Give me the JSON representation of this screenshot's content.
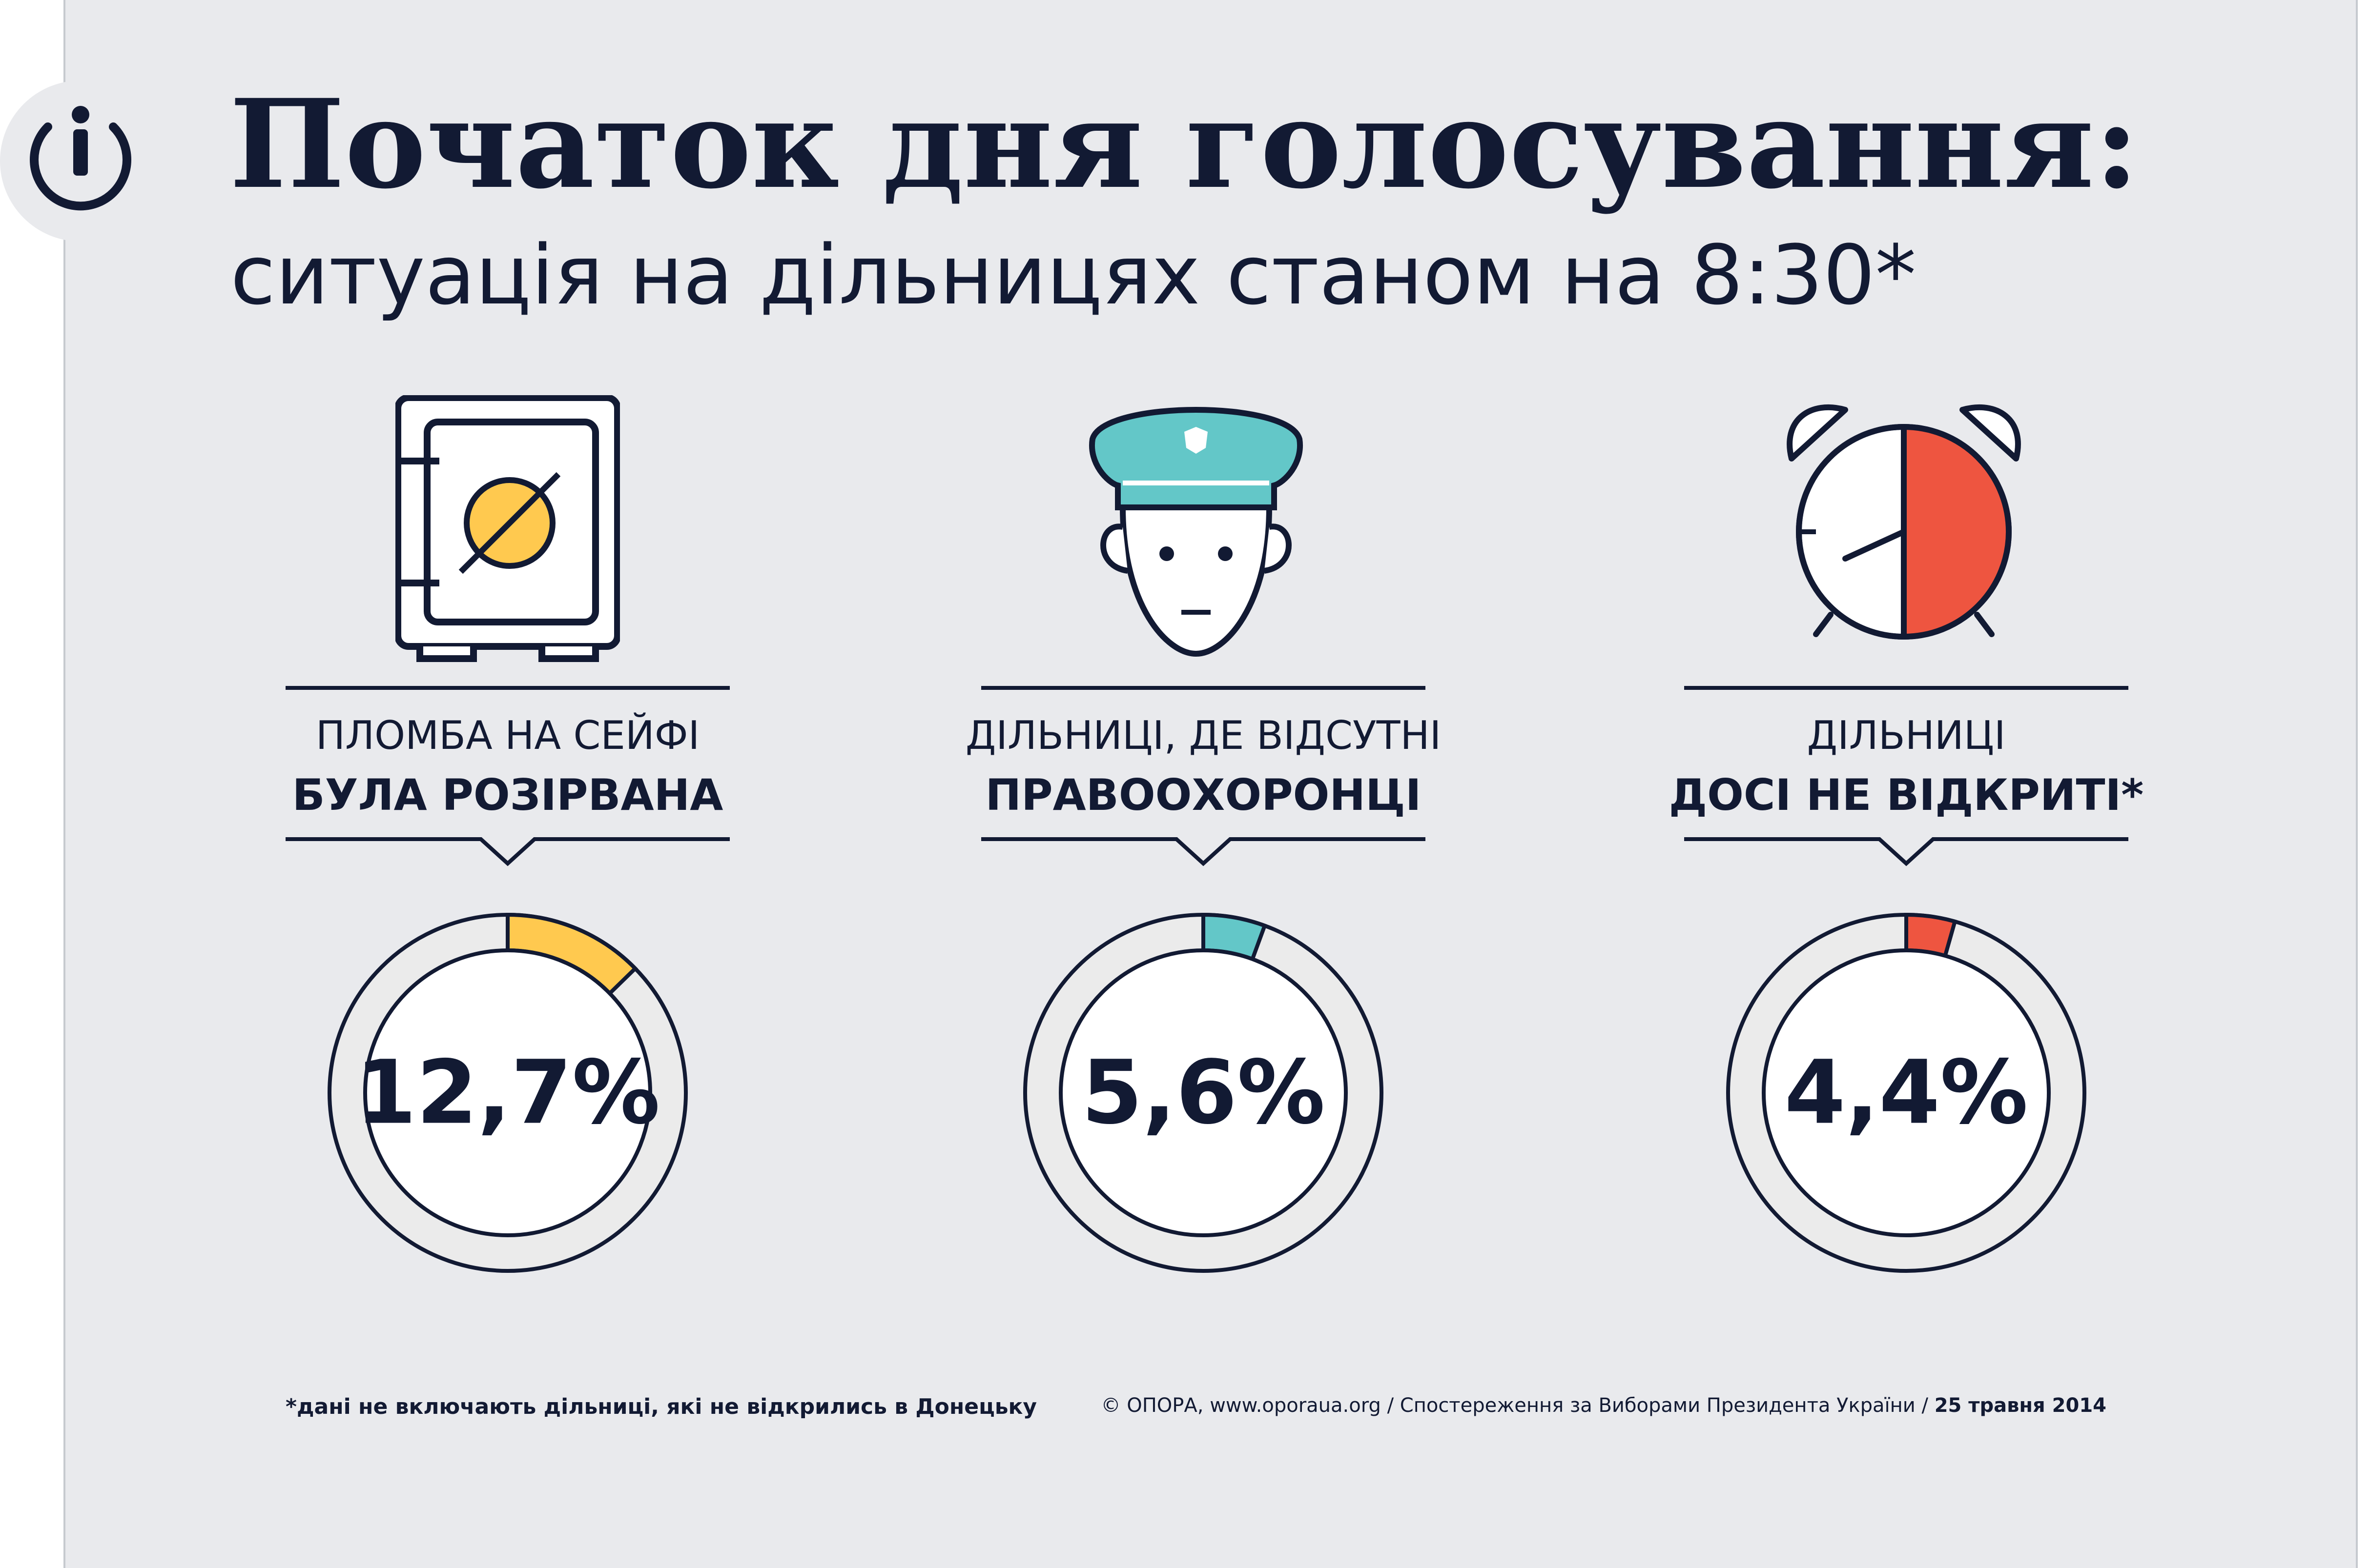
{
  "header": {
    "title": "Початок дня голосування:",
    "subtitle": "ситуація на дільницях станом на 8:30*"
  },
  "logo": {
    "icon": "power-icon"
  },
  "chart_data": [
    {
      "type": "pie",
      "label_line1": "ПЛОМБА НА СЕЙФІ",
      "label_line2": "БУЛА РОЗІРВАНА",
      "value_label": "12,7%",
      "value": 12.7,
      "color": "#ffc94f",
      "icon": "safe-icon"
    },
    {
      "type": "pie",
      "label_line1": "ДІЛЬНИЦІ, ДЕ ВІДСУТНІ",
      "label_line2": "ПРАВООХОРОНЦІ",
      "value_label": "5,6%",
      "value": 5.6,
      "color": "#63c7c8",
      "icon": "police-officer-icon"
    },
    {
      "type": "pie",
      "label_line1": "ДІЛЬНИЦІ",
      "label_line2": "ДОСІ НЕ ВІДКРИТІ*",
      "value_label": "4,4%",
      "value": 4.4,
      "color": "#ee5540",
      "icon": "alarm-clock-icon"
    }
  ],
  "footer": {
    "footnote": "*дані не включають дільниці, які не відкрились в Донецьку",
    "credits_main": "© ОПОРА, www.oporaua.org / Спостереження за Виборами Президента України / ",
    "credits_date": "25 травня 2014"
  },
  "colors": {
    "navy": "#121a33",
    "background": "#e9eaed",
    "ring_base": "#ebebeb",
    "clock_red": "#ee5540",
    "cap_teal": "#63c7c8",
    "safe_gold": "#ffc94f"
  }
}
